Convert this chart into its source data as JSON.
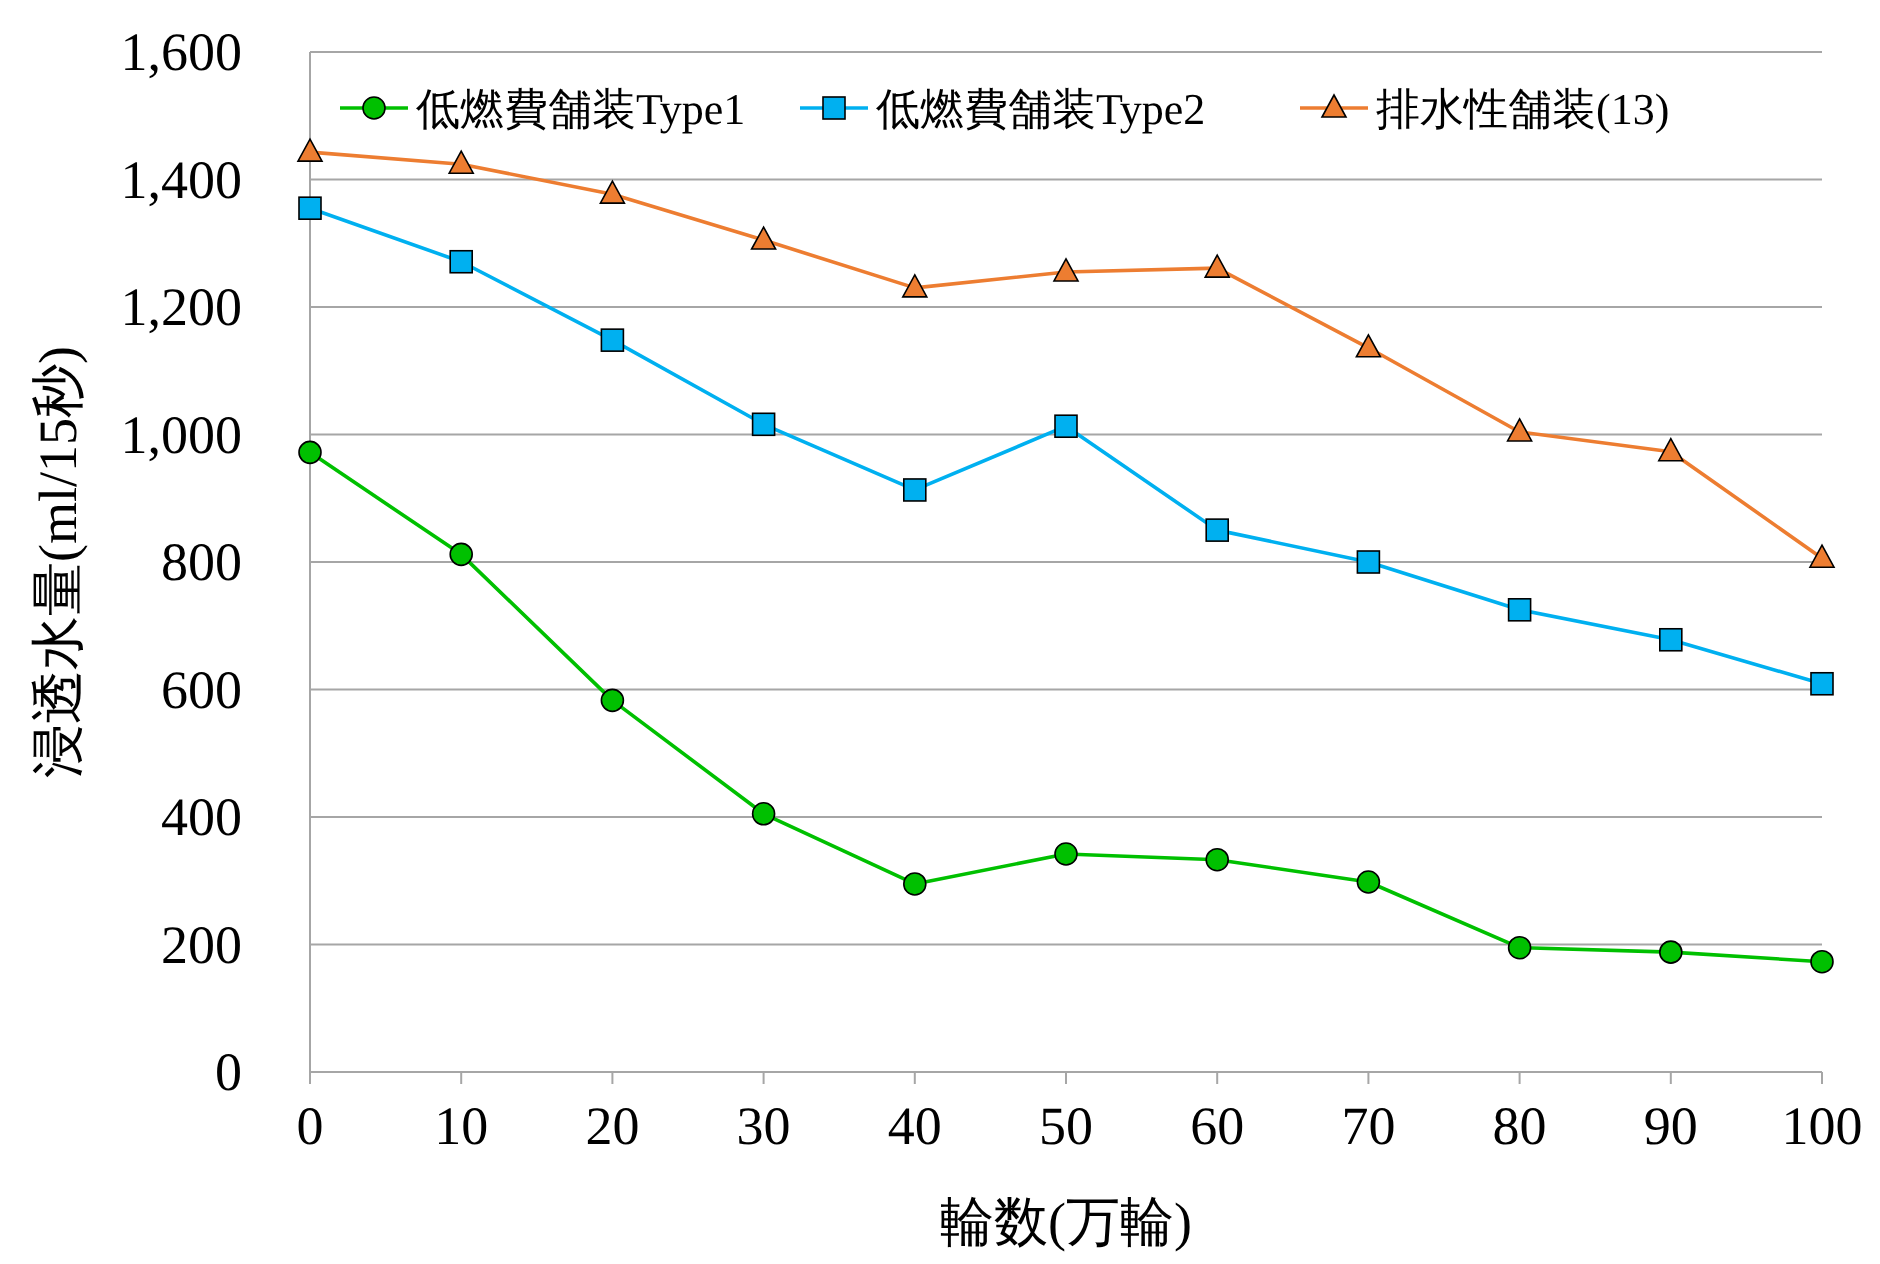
{
  "chart_data": {
    "type": "line",
    "xlabel": "輪数(万輪)",
    "ylabel": "浸透水量(ml/15秒)",
    "x": [
      0,
      10,
      20,
      30,
      40,
      50,
      60,
      70,
      80,
      90,
      100
    ],
    "xlim": [
      0,
      100
    ],
    "xticks": [
      0,
      10,
      20,
      30,
      40,
      50,
      60,
      70,
      80,
      90,
      100
    ],
    "ylim": [
      0,
      1600
    ],
    "yticks": [
      0,
      {
        "value": 200,
        "label": "200"
      },
      {
        "value": 400,
        "label": "400"
      },
      {
        "value": 600,
        "label": "600"
      },
      {
        "value": 800,
        "label": "800"
      },
      {
        "value": 1000,
        "label": "1,000"
      },
      {
        "value": 1200,
        "label": "1,200"
      },
      {
        "value": 1400,
        "label": "1,400"
      },
      {
        "value": 1600,
        "label": "1,600"
      }
    ],
    "grid": "y",
    "legend": "top",
    "series": [
      {
        "name": "低燃費舗装Type1",
        "color": "#00c000",
        "marker": "circle",
        "values": [
          972,
          812,
          583,
          405,
          295,
          342,
          333,
          298,
          195,
          188,
          173
        ]
      },
      {
        "name": "低燃費舗装Type2",
        "color": "#00b0f0",
        "marker": "square",
        "values": [
          1355,
          1271,
          1148,
          1016,
          913,
          1013,
          850,
          800,
          725,
          678,
          609
        ]
      },
      {
        "name": "排水性舗装(13)",
        "color": "#ed7d31",
        "marker": "triangle",
        "values": [
          1443,
          1424,
          1377,
          1305,
          1230,
          1255,
          1261,
          1136,
          1004,
          973,
          806
        ]
      }
    ]
  }
}
